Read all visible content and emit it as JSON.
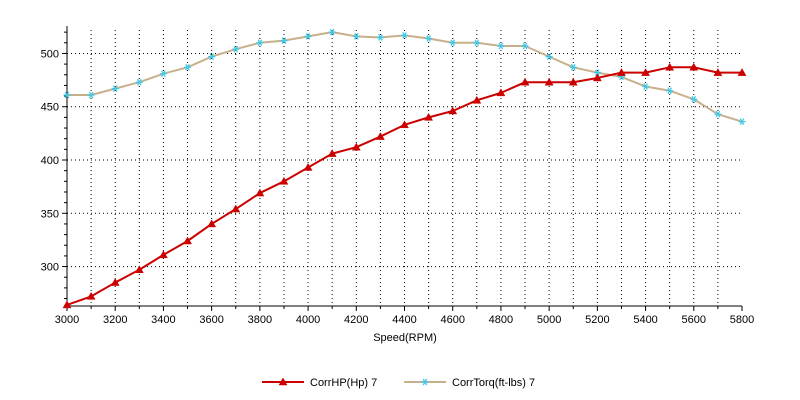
{
  "chart_data": {
    "type": "line",
    "title": "",
    "xlabel": "Speed(RPM)",
    "ylabel": "",
    "xlim": [
      3000,
      5800
    ],
    "ylim": [
      263,
      522
    ],
    "xticks": [
      3000,
      3200,
      3400,
      3600,
      3800,
      4000,
      4200,
      4400,
      4600,
      4800,
      5000,
      5200,
      5400,
      5600,
      5800
    ],
    "yticks": [
      300,
      350,
      400,
      450,
      500
    ],
    "grid": true,
    "legend_position": "bottom-center",
    "x": [
      3000,
      3100,
      3200,
      3300,
      3400,
      3500,
      3600,
      3700,
      3800,
      3900,
      4000,
      4100,
      4200,
      4300,
      4400,
      4500,
      4600,
      4700,
      4800,
      4900,
      5000,
      5100,
      5200,
      5300,
      5400,
      5500,
      5600,
      5700,
      5800
    ],
    "series": [
      {
        "name": "CorrHP(Hp)  7",
        "color": "#cc0000",
        "marker": "triangle",
        "values": [
          264,
          272,
          285,
          297,
          311,
          324,
          340,
          354,
          369,
          380,
          393,
          406,
          412,
          422,
          433,
          440,
          446,
          456,
          463,
          473,
          473,
          473,
          477,
          482,
          482,
          487,
          487,
          482,
          482
        ]
      },
      {
        "name": "CorrTorq(ft-lbs)  7",
        "color": "#c8b08c",
        "marker_color": "#40c8e8",
        "marker": "asterisk",
        "values": [
          461,
          461,
          467,
          473,
          481,
          487,
          497,
          504,
          510,
          512,
          516,
          520,
          516,
          515,
          517,
          514,
          510,
          510,
          507,
          507,
          497,
          487,
          482,
          478,
          469,
          465,
          457,
          443,
          436
        ]
      }
    ]
  }
}
